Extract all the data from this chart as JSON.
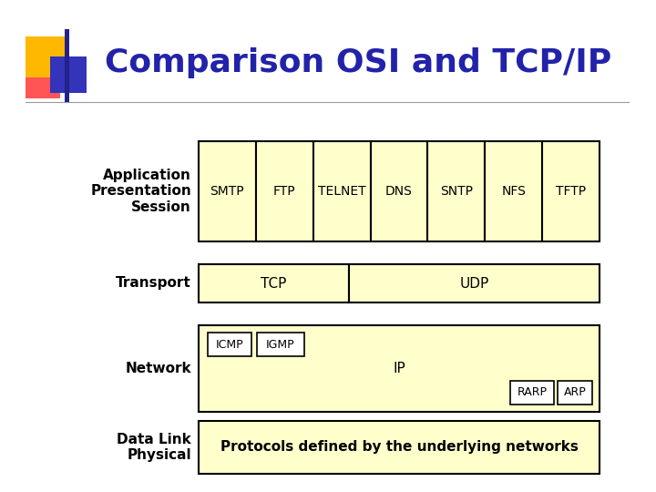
{
  "title": "Comparison OSI and TCP/IP",
  "title_color": "#2222AA",
  "title_fontsize": 26,
  "bg_color": "#FFFFFF",
  "box_fill": "#FFFFCC",
  "box_edge": "#000000",
  "label_color": "#000000",
  "app_protocols": [
    "SMTP",
    "FTP",
    "TELNET",
    "DNS",
    "SNTP",
    "NFS",
    "TFTP"
  ],
  "network_center_text": "IP",
  "datalink_text": "Protocols defined by the underlying networks",
  "logo_yellow": "#FFB800",
  "logo_red": "#FF5555",
  "logo_blue": "#3333BB",
  "logo_darkblue": "#222288"
}
